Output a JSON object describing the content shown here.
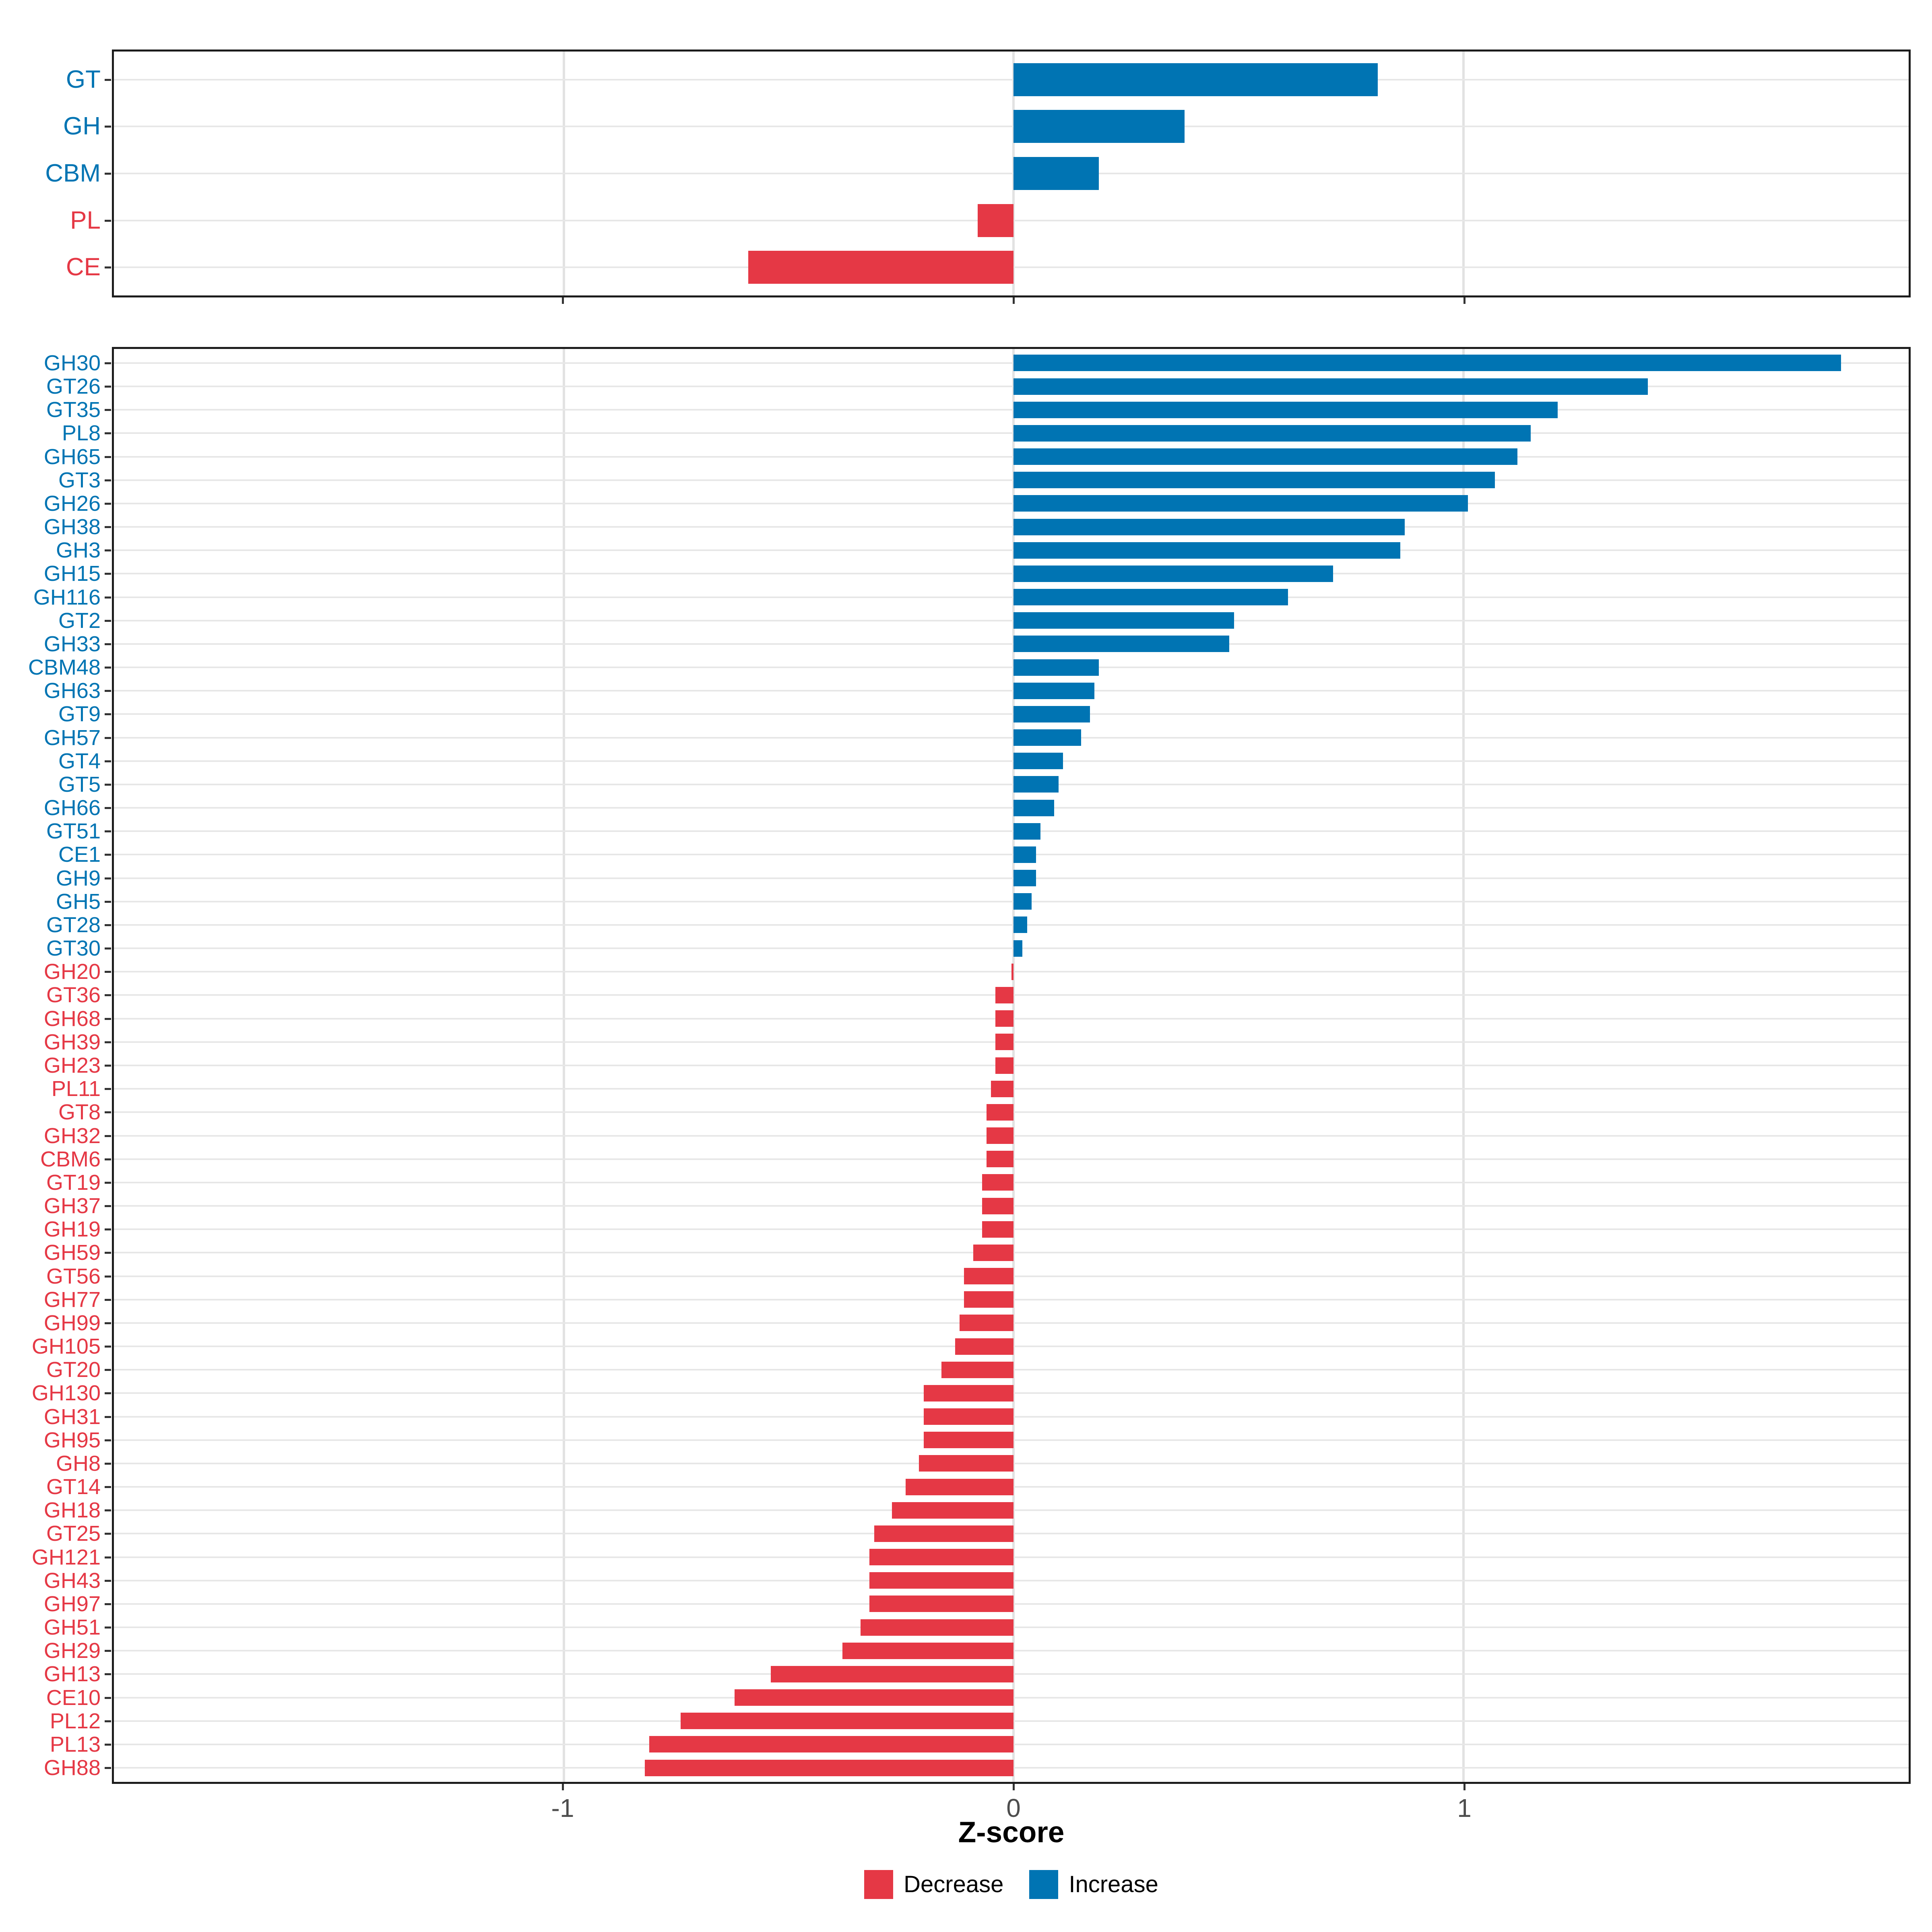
{
  "axis": {
    "xlabel": "Z-score",
    "xlim": [
      -2.0,
      1.99
    ],
    "ticks": [
      {
        "label": "-1",
        "value": -1
      },
      {
        "label": "0",
        "value": 0
      },
      {
        "label": "1",
        "value": 1
      }
    ]
  },
  "legend": {
    "items": [
      {
        "label": "Decrease",
        "key": "decrease"
      },
      {
        "label": "Increase",
        "key": "increase"
      }
    ]
  },
  "colors": {
    "increase": "#0074b3",
    "decrease": "#e53845",
    "grid_vertical": "#e2e2e2",
    "grid_horizontal": "#e7e7e7",
    "panel_border": "#1c1c1c",
    "tick": "#333333",
    "tick_label": "#4d4d4d"
  },
  "chart_data": [
    {
      "id": "summary",
      "type": "bar",
      "orientation": "horizontal",
      "title": "",
      "xlabel": "Z-score",
      "xlim": [
        -2.0,
        1.99
      ],
      "grid": true,
      "legend_position": "bottom",
      "categories": [
        "GT",
        "GH",
        "CBM",
        "PL",
        "CE"
      ],
      "values": [
        0.81,
        0.38,
        0.19,
        -0.08,
        -0.59
      ]
    },
    {
      "id": "families",
      "type": "bar",
      "orientation": "horizontal",
      "title": "",
      "xlabel": "Z-score",
      "xlim": [
        -2.0,
        1.99
      ],
      "grid": true,
      "legend_position": "bottom",
      "categories": [
        "GH30",
        "GT26",
        "GT35",
        "PL8",
        "GH65",
        "GT3",
        "GH26",
        "GH38",
        "GH3",
        "GH15",
        "GH116",
        "GT2",
        "GH33",
        "CBM48",
        "GH63",
        "GT9",
        "GH57",
        "GT4",
        "GT5",
        "GH66",
        "GT51",
        "CE1",
        "GH9",
        "GH5",
        "GT28",
        "GT30",
        "GH20",
        "GT36",
        "GH68",
        "GH39",
        "GH23",
        "PL11",
        "GT8",
        "GH32",
        "CBM6",
        "GT19",
        "GH37",
        "GH19",
        "GH59",
        "GT56",
        "GH77",
        "GH99",
        "GH105",
        "GT20",
        "GH130",
        "GH31",
        "GH95",
        "GH8",
        "GT14",
        "GH18",
        "GT25",
        "GH121",
        "GH43",
        "GH97",
        "GH51",
        "GH29",
        "GH13",
        "CE10",
        "PL12",
        "PL13",
        "GH88"
      ],
      "values": [
        1.84,
        1.41,
        1.21,
        1.15,
        1.12,
        1.07,
        1.01,
        0.87,
        0.86,
        0.71,
        0.61,
        0.49,
        0.48,
        0.19,
        0.18,
        0.17,
        0.15,
        0.11,
        0.1,
        0.09,
        0.06,
        0.05,
        0.05,
        0.04,
        0.03,
        0.02,
        -0.005,
        -0.04,
        -0.04,
        -0.04,
        -0.04,
        -0.05,
        -0.06,
        -0.06,
        -0.06,
        -0.07,
        -0.07,
        -0.07,
        -0.09,
        -0.11,
        -0.11,
        -0.12,
        -0.13,
        -0.16,
        -0.2,
        -0.2,
        -0.2,
        -0.21,
        -0.24,
        -0.27,
        -0.31,
        -0.32,
        -0.32,
        -0.32,
        -0.34,
        -0.38,
        -0.54,
        -0.62,
        -0.74,
        -0.81,
        -0.82
      ]
    }
  ]
}
